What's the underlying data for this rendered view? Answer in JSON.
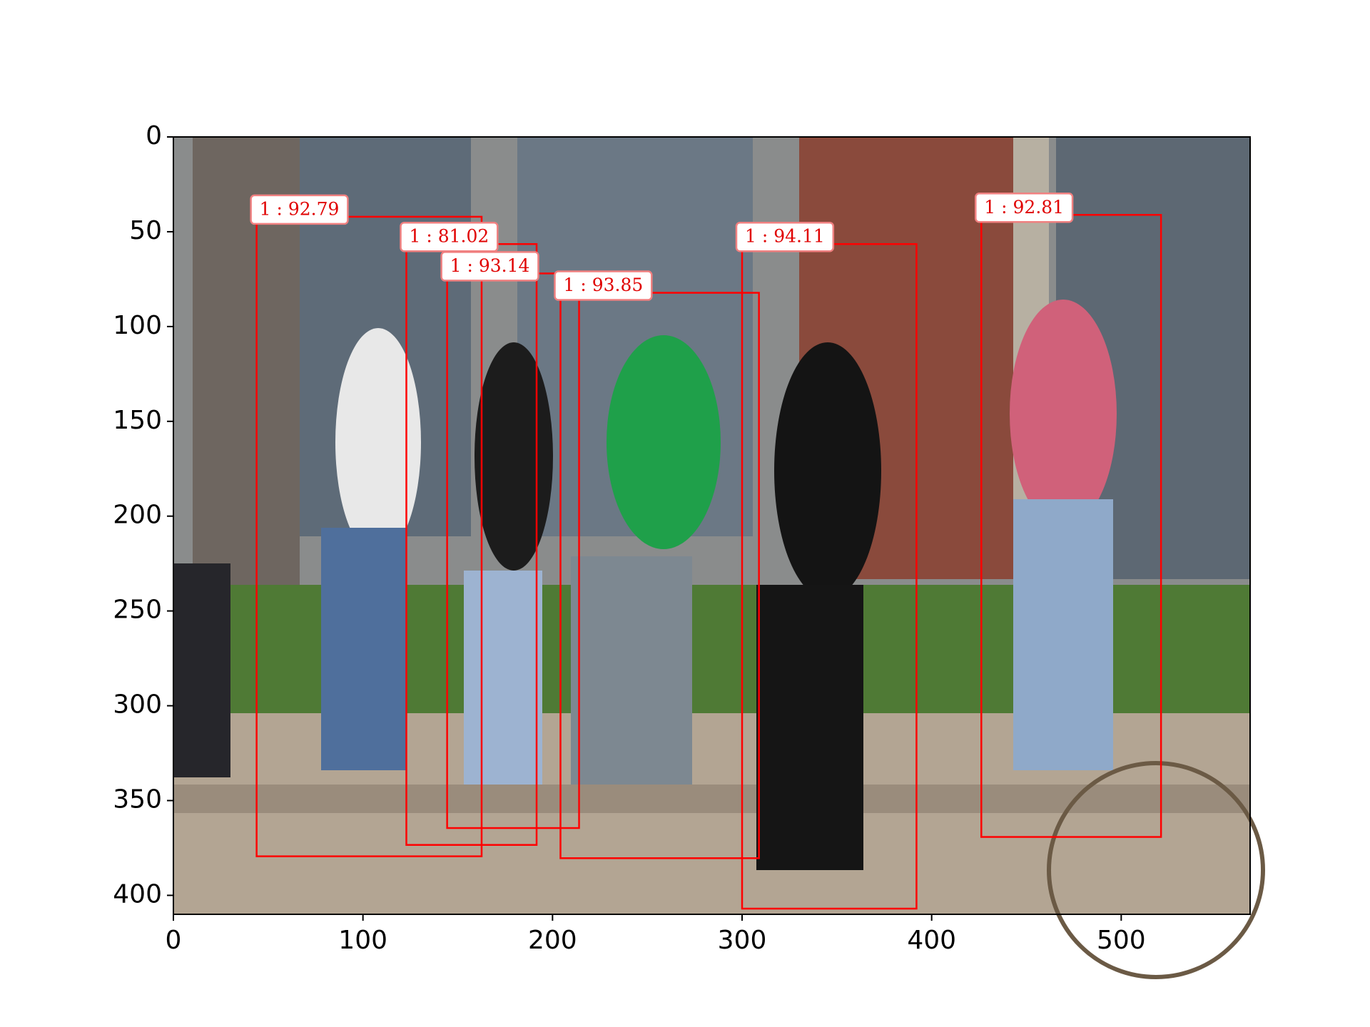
{
  "chart_data": {
    "type": "detection",
    "xlim": [
      0,
      568
    ],
    "ylim": [
      410,
      0
    ],
    "xticks": [
      0,
      100,
      200,
      300,
      400,
      500
    ],
    "yticks": [
      0,
      50,
      100,
      150,
      200,
      250,
      300,
      350,
      400
    ],
    "color": "#ff0000",
    "boxes": [
      {
        "label": "1 : 92.79",
        "x": [
          43.9,
          162.6
        ],
        "y": [
          42.1,
          379.4
        ]
      },
      {
        "label": "1 : 81.02",
        "x": [
          122.9,
          191.6
        ],
        "y": [
          56.5,
          373.4
        ]
      },
      {
        "label": "1 : 93.14",
        "x": [
          144.4,
          214.0
        ],
        "y": [
          72.0,
          364.5
        ]
      },
      {
        "label": "1 : 93.85",
        "x": [
          204.2,
          308.9
        ],
        "y": [
          82.2,
          380.4
        ]
      },
      {
        "label": "1 : 94.11",
        "x": [
          300.0,
          392.0
        ],
        "y": [
          56.5,
          407.0
        ]
      },
      {
        "label": "1 : 92.81",
        "x": [
          426.2,
          521.0
        ],
        "y": [
          41.1,
          369.2
        ]
      }
    ]
  }
}
